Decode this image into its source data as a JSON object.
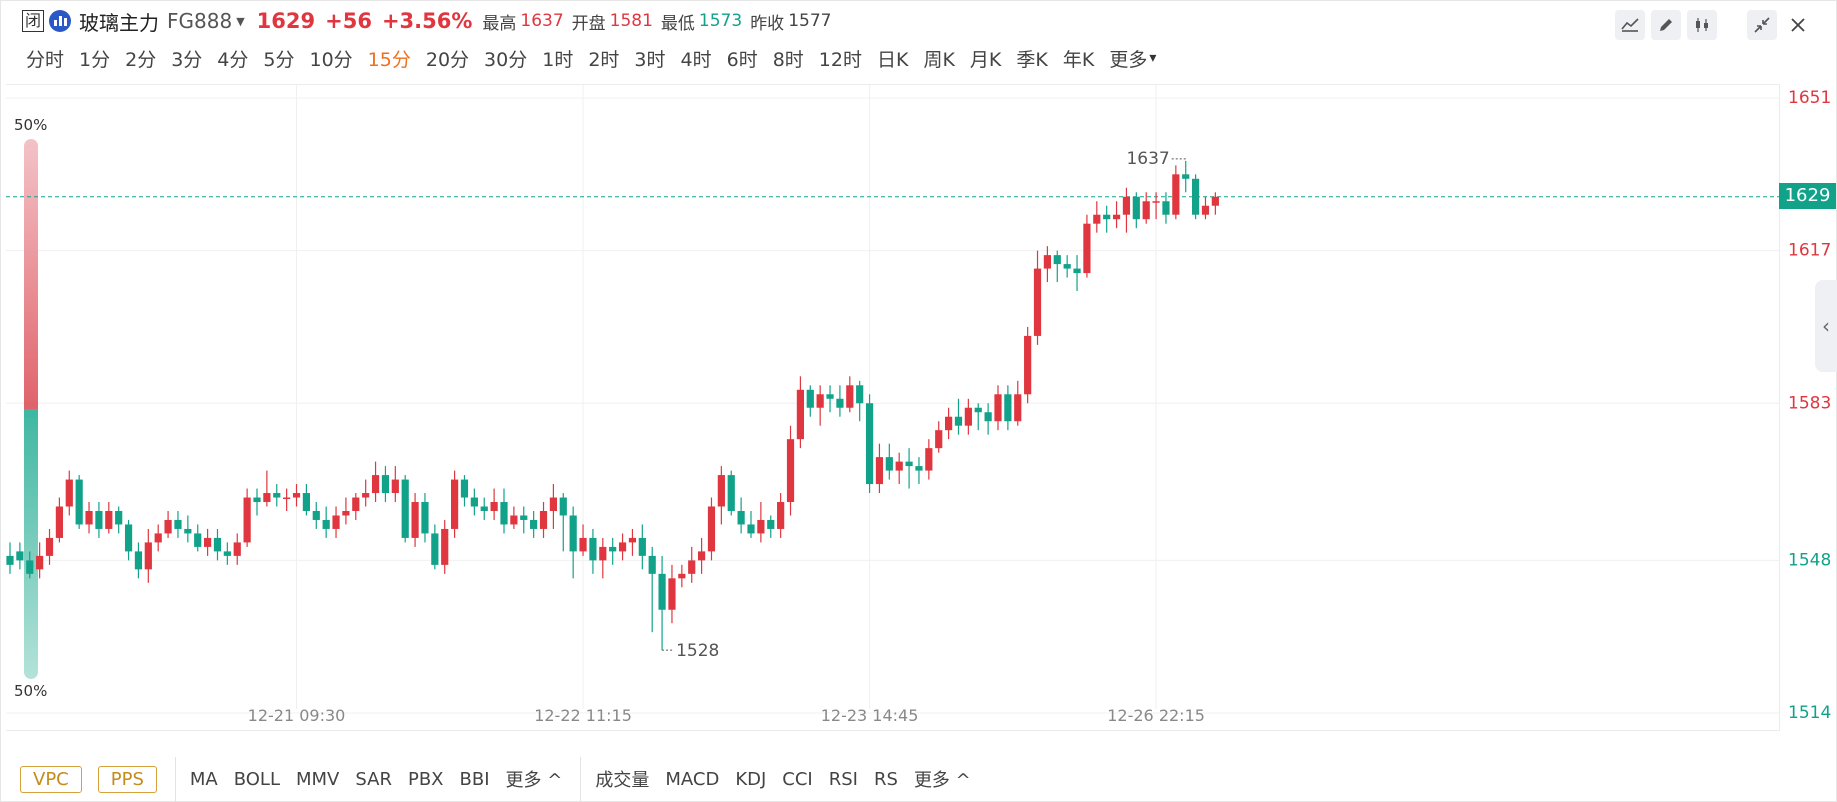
{
  "header": {
    "closed_badge": "闭",
    "name": "玻璃主力",
    "code": "FG888",
    "last": "1629",
    "change": "+56",
    "change_pct": "+3.56%",
    "stats": [
      {
        "label": "最高",
        "value": "1637",
        "color": "#e0363f"
      },
      {
        "label": "开盘",
        "value": "1581",
        "color": "#e0363f"
      },
      {
        "label": "最低",
        "value": "1573",
        "color": "#12a28a"
      },
      {
        "label": "昨收",
        "value": "1577",
        "color": "#444444"
      }
    ]
  },
  "periods": [
    "分时",
    "1分",
    "2分",
    "3分",
    "4分",
    "5分",
    "10分",
    "15分",
    "20分",
    "30分",
    "1时",
    "2时",
    "3时",
    "4时",
    "6时",
    "8时",
    "12时",
    "日K",
    "周K",
    "月K",
    "季K",
    "年K",
    "更多"
  ],
  "active_period": "15分",
  "toolbar": [
    "line-tool-icon",
    "pen-icon",
    "candle-style-icon",
    "collapse-icon",
    "close-icon"
  ],
  "indicators": {
    "buttons": [
      "VPC",
      "PPS"
    ],
    "main": [
      "MA",
      "BOLL",
      "MMV",
      "SAR",
      "PBX",
      "BBI",
      "更多 ^"
    ],
    "sub": [
      "成交量",
      "MACD",
      "KDJ",
      "CCI",
      "RSI",
      "RS",
      "更多 ^"
    ]
  },
  "colors": {
    "up": "#e0363f",
    "down": "#12a28a",
    "accent": "#f0701e",
    "lines": "#12a28a"
  },
  "chart_data": {
    "type": "candlestick",
    "title": "",
    "xlabel": "",
    "ylabel": "",
    "ylim": [
      1514,
      1651
    ],
    "y_ticks": [
      {
        "value": 1651,
        "color": "#e0363f"
      },
      {
        "value": 1617,
        "color": "#e0363f"
      },
      {
        "value": 1583,
        "color": "#e0363f"
      },
      {
        "value": 1548,
        "color": "#12a28a"
      },
      {
        "value": 1514,
        "color": "#12a28a"
      }
    ],
    "x_ticks": [
      {
        "index": 29,
        "label": "12-21 09:30"
      },
      {
        "index": 58,
        "label": "12-22 11:15"
      },
      {
        "index": 87,
        "label": "12-23 14:45"
      },
      {
        "index": 116,
        "label": "12-26 22:15"
      }
    ],
    "last_price_line": 1629,
    "high_label": "1637",
    "low_label": "1528",
    "sentiment": {
      "top": "50%",
      "bottom": "50%"
    },
    "candles": [
      [
        1549,
        1547,
        1552,
        1545
      ],
      [
        1550,
        1548,
        1552,
        1546
      ],
      [
        1548,
        1545,
        1550,
        1544
      ],
      [
        1546,
        1549,
        1552,
        1544
      ],
      [
        1549,
        1553,
        1555,
        1547
      ],
      [
        1553,
        1560,
        1562,
        1552
      ],
      [
        1560,
        1566,
        1568,
        1558
      ],
      [
        1566,
        1556,
        1567,
        1555
      ],
      [
        1556,
        1559,
        1561,
        1554
      ],
      [
        1559,
        1555,
        1561,
        1553
      ],
      [
        1555,
        1559,
        1561,
        1554
      ],
      [
        1559,
        1556,
        1560,
        1554
      ],
      [
        1556,
        1550,
        1557,
        1548
      ],
      [
        1550,
        1546,
        1552,
        1544
      ],
      [
        1546,
        1552,
        1555,
        1543
      ],
      [
        1552,
        1554,
        1556,
        1550
      ],
      [
        1554,
        1557,
        1559,
        1553
      ],
      [
        1557,
        1555,
        1559,
        1553
      ],
      [
        1555,
        1554,
        1558,
        1552
      ],
      [
        1554,
        1551,
        1556,
        1550
      ],
      [
        1551,
        1553,
        1555,
        1549
      ],
      [
        1553,
        1550,
        1555,
        1548
      ],
      [
        1550,
        1549,
        1552,
        1547
      ],
      [
        1549,
        1552,
        1554,
        1547
      ],
      [
        1552,
        1562,
        1564,
        1551
      ],
      [
        1562,
        1561,
        1564,
        1558
      ],
      [
        1561,
        1563,
        1568,
        1560
      ],
      [
        1563,
        1562,
        1565,
        1560
      ],
      [
        1562,
        1562,
        1564,
        1559
      ],
      [
        1562,
        1563,
        1565,
        1560
      ],
      [
        1563,
        1559,
        1565,
        1558
      ],
      [
        1559,
        1557,
        1561,
        1555
      ],
      [
        1557,
        1555,
        1560,
        1553
      ],
      [
        1555,
        1558,
        1560,
        1553
      ],
      [
        1558,
        1559,
        1562,
        1556
      ],
      [
        1559,
        1562,
        1563,
        1557
      ],
      [
        1562,
        1563,
        1566,
        1560
      ],
      [
        1563,
        1567,
        1570,
        1561
      ],
      [
        1567,
        1563,
        1569,
        1561
      ],
      [
        1563,
        1566,
        1569,
        1561
      ],
      [
        1566,
        1553,
        1567,
        1552
      ],
      [
        1553,
        1561,
        1563,
        1551
      ],
      [
        1561,
        1554,
        1563,
        1552
      ],
      [
        1554,
        1547,
        1556,
        1546
      ],
      [
        1547,
        1555,
        1557,
        1545
      ],
      [
        1555,
        1566,
        1568,
        1553
      ],
      [
        1566,
        1562,
        1567,
        1560
      ],
      [
        1562,
        1560,
        1564,
        1558
      ],
      [
        1560,
        1559,
        1562,
        1557
      ],
      [
        1559,
        1561,
        1564,
        1557
      ],
      [
        1561,
        1556,
        1564,
        1554
      ],
      [
        1556,
        1558,
        1560,
        1555
      ],
      [
        1558,
        1557,
        1560,
        1554
      ],
      [
        1557,
        1555,
        1559,
        1553
      ],
      [
        1555,
        1559,
        1561,
        1553
      ],
      [
        1559,
        1562,
        1565,
        1555
      ],
      [
        1562,
        1558,
        1563,
        1550
      ],
      [
        1558,
        1550,
        1560,
        1544
      ],
      [
        1550,
        1553,
        1556,
        1549
      ],
      [
        1553,
        1548,
        1555,
        1545
      ],
      [
        1548,
        1551,
        1553,
        1544
      ],
      [
        1551,
        1550,
        1553,
        1547
      ],
      [
        1550,
        1552,
        1554,
        1548
      ],
      [
        1552,
        1553,
        1555,
        1549
      ],
      [
        1553,
        1549,
        1556,
        1546
      ],
      [
        1549,
        1545,
        1551,
        1532
      ],
      [
        1545,
        1537,
        1549,
        1528
      ],
      [
        1537,
        1544,
        1547,
        1534
      ],
      [
        1544,
        1545,
        1547,
        1542
      ],
      [
        1545,
        1548,
        1551,
        1543
      ],
      [
        1548,
        1550,
        1553,
        1545
      ],
      [
        1550,
        1560,
        1562,
        1548
      ],
      [
        1560,
        1567,
        1569,
        1556
      ],
      [
        1567,
        1559,
        1568,
        1558
      ],
      [
        1559,
        1556,
        1562,
        1554
      ],
      [
        1556,
        1554,
        1559,
        1553
      ],
      [
        1554,
        1557,
        1561,
        1552
      ],
      [
        1557,
        1555,
        1558,
        1553
      ],
      [
        1555,
        1561,
        1563,
        1553
      ],
      [
        1561,
        1575,
        1578,
        1558
      ],
      [
        1575,
        1586,
        1589,
        1573
      ],
      [
        1586,
        1582,
        1587,
        1580
      ],
      [
        1582,
        1585,
        1587,
        1578
      ],
      [
        1585,
        1584,
        1587,
        1581
      ],
      [
        1584,
        1582,
        1587,
        1580
      ],
      [
        1582,
        1587,
        1589,
        1581
      ],
      [
        1587,
        1583,
        1588,
        1579
      ],
      [
        1583,
        1565,
        1585,
        1563
      ],
      [
        1565,
        1571,
        1574,
        1563
      ],
      [
        1571,
        1568,
        1574,
        1566
      ],
      [
        1568,
        1570,
        1572,
        1565
      ],
      [
        1570,
        1569,
        1573,
        1564
      ],
      [
        1569,
        1568,
        1571,
        1565
      ],
      [
        1568,
        1573,
        1575,
        1566
      ],
      [
        1573,
        1577,
        1579,
        1572
      ],
      [
        1577,
        1580,
        1582,
        1575
      ],
      [
        1580,
        1578,
        1584,
        1576
      ],
      [
        1578,
        1582,
        1584,
        1576
      ],
      [
        1582,
        1581,
        1583,
        1577
      ],
      [
        1581,
        1579,
        1583,
        1576
      ],
      [
        1579,
        1585,
        1587,
        1577
      ],
      [
        1585,
        1579,
        1587,
        1577
      ],
      [
        1579,
        1585,
        1588,
        1578
      ],
      [
        1585,
        1598,
        1600,
        1583
      ],
      [
        1598,
        1613,
        1617,
        1596
      ],
      [
        1613,
        1616,
        1618,
        1610
      ],
      [
        1616,
        1614,
        1617,
        1610
      ],
      [
        1614,
        1613,
        1616,
        1611
      ],
      [
        1613,
        1612,
        1616,
        1608
      ],
      [
        1612,
        1623,
        1625,
        1611
      ],
      [
        1623,
        1625,
        1628,
        1621
      ],
      [
        1625,
        1624,
        1627,
        1621
      ],
      [
        1624,
        1625,
        1628,
        1622
      ],
      [
        1625,
        1629,
        1631,
        1621
      ],
      [
        1629,
        1624,
        1630,
        1622
      ],
      [
        1624,
        1628,
        1630,
        1623
      ],
      [
        1628,
        1628,
        1630,
        1624
      ],
      [
        1628,
        1625,
        1630,
        1623
      ],
      [
        1625,
        1634,
        1636,
        1624
      ],
      [
        1634,
        1633,
        1637,
        1630
      ],
      [
        1633,
        1625,
        1634,
        1624
      ],
      [
        1625,
        1627,
        1629,
        1624
      ],
      [
        1627,
        1629,
        1630,
        1625
      ]
    ]
  }
}
